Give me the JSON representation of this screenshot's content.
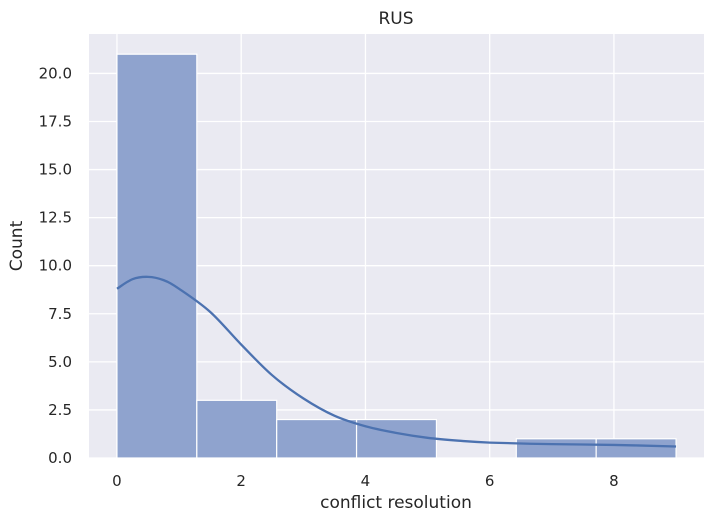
{
  "chart_data": {
    "type": "bar",
    "title": "RUS",
    "xlabel": "conflict resolution",
    "ylabel": "Count",
    "xlim": [
      -0.45,
      9.45
    ],
    "ylim": [
      0,
      22.05
    ],
    "x_ticks": [
      0,
      2,
      4,
      6,
      8
    ],
    "y_ticks": [
      0.0,
      2.5,
      5.0,
      7.5,
      10.0,
      12.5,
      15.0,
      17.5,
      20.0
    ],
    "x_tick_labels": [
      "0",
      "2",
      "4",
      "6",
      "8"
    ],
    "y_tick_labels": [
      "0.0",
      "2.5",
      "5.0",
      "7.5",
      "10.0",
      "12.5",
      "15.0",
      "17.5",
      "20.0"
    ],
    "grid": true,
    "bins": [
      {
        "x0": 0.0,
        "x1": 1.2857,
        "count": 21
      },
      {
        "x0": 1.2857,
        "x1": 2.5714,
        "count": 3
      },
      {
        "x0": 2.5714,
        "x1": 3.8571,
        "count": 2
      },
      {
        "x0": 3.8571,
        "x1": 5.1429,
        "count": 2
      },
      {
        "x0": 5.1429,
        "x1": 6.4286,
        "count": 0
      },
      {
        "x0": 6.4286,
        "x1": 7.7143,
        "count": 1
      },
      {
        "x0": 7.7143,
        "x1": 9.0,
        "count": 1
      }
    ],
    "kde": {
      "x": [
        0.0,
        0.25,
        0.5,
        0.75,
        1.0,
        1.5,
        2.0,
        2.5,
        3.0,
        3.5,
        4.0,
        4.5,
        5.0,
        5.5,
        6.0,
        7.0,
        8.0,
        9.0
      ],
      "y": [
        8.8,
        9.3,
        9.42,
        9.25,
        8.8,
        7.6,
        5.9,
        4.3,
        3.1,
        2.2,
        1.65,
        1.3,
        1.05,
        0.9,
        0.8,
        0.72,
        0.68,
        0.6
      ]
    },
    "colors": {
      "background": "#eaeaf2",
      "grid": "#ffffff",
      "bar_fill": "#8fa3ce",
      "bar_edge": "#ffffff",
      "kde_line": "#4c72b0"
    }
  }
}
